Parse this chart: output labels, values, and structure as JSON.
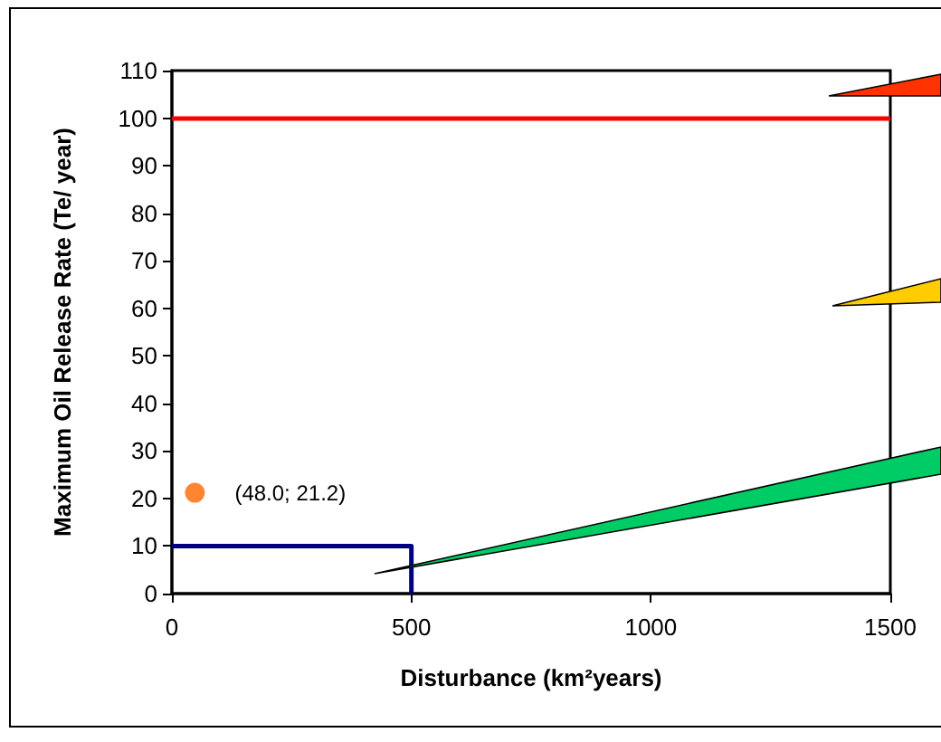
{
  "chart_data": {
    "type": "line",
    "xlabel": "Disturbance (km²years)",
    "ylabel": "Maximum Oil Release Rate (Te/ year)",
    "xlim": [
      0,
      1500
    ],
    "xticks": [
      0,
      500,
      1000,
      1500
    ],
    "ylim": [
      0,
      110
    ],
    "yticks": [
      0,
      10,
      20,
      30,
      40,
      50,
      60,
      70,
      80,
      90,
      100,
      110
    ],
    "grid": false,
    "series": [
      {
        "color": "#000080",
        "x": [
          0,
          500,
          500
        ],
        "values": [
          10,
          10,
          0
        ],
        "marker": "none"
      },
      {
        "type": "scatter",
        "color": "#ff6600",
        "x": [
          48
        ],
        "values": [
          21.2
        ],
        "marker": "circle"
      }
    ],
    "ref_lines": [
      {
        "axis": "y",
        "value": 100,
        "color": "#ff0000",
        "line_style": "solid"
      }
    ],
    "annotations": [
      {
        "text": "(48.0; 21.2)",
        "x": 48,
        "y": 21.2
      }
    ]
  }
}
